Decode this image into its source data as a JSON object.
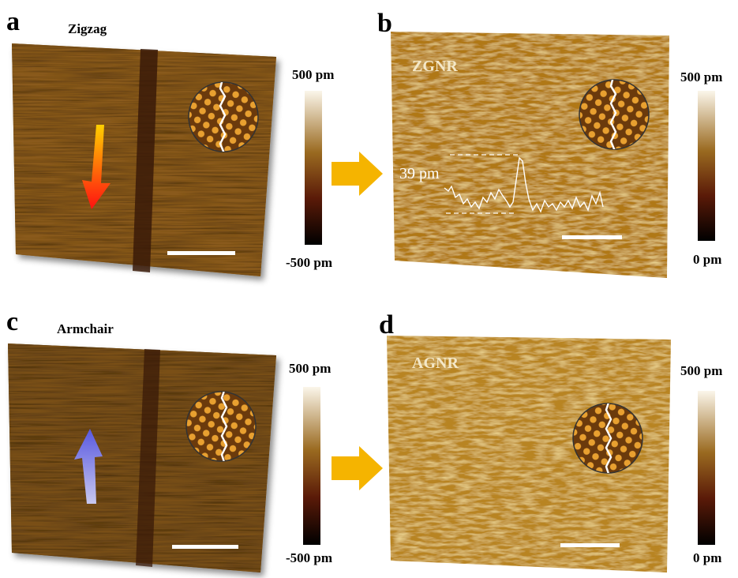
{
  "panels": [
    {
      "label": "a",
      "title": "Zigzag",
      "colorbar_top": "500 pm",
      "colorbar_bottom": "-500 pm"
    },
    {
      "label": "b",
      "title": "ZGNR",
      "annotation": "39 pm",
      "colorbar_top": "500 pm",
      "colorbar_bottom": "0 pm"
    },
    {
      "label": "c",
      "title": "Armchair",
      "colorbar_top": "500 pm",
      "colorbar_bottom": "-500 pm"
    },
    {
      "label": "d",
      "title": "AGNR",
      "colorbar_top": "500 pm",
      "colorbar_bottom": "0 pm"
    }
  ]
}
